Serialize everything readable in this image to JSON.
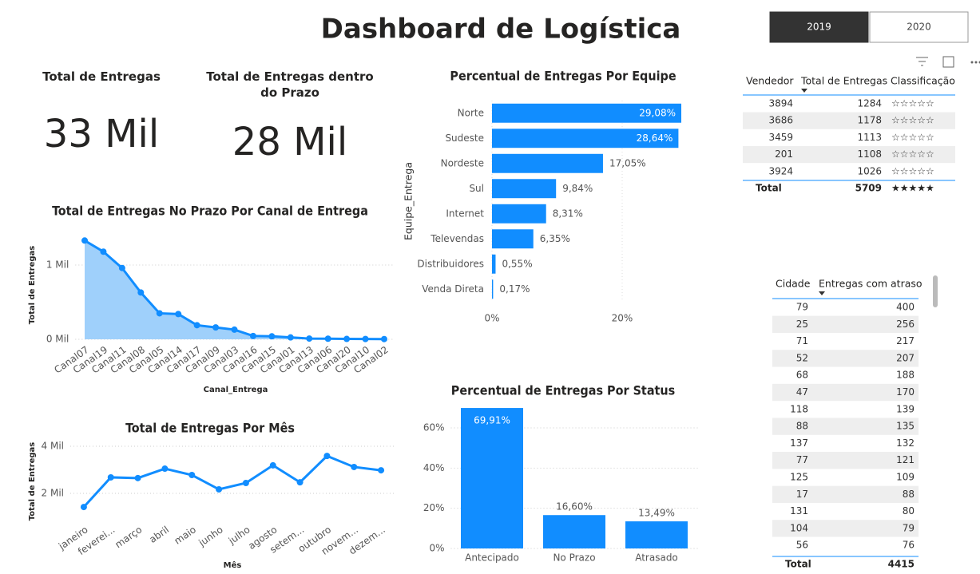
{
  "title": "Dashboard de Logística",
  "slicer": {
    "options": [
      "2019",
      "2020"
    ],
    "selected": 0
  },
  "cards": [
    {
      "title": "Total de Entregas",
      "value": "33 Mil"
    },
    {
      "title": "Total de Entregas dentro do Prazo",
      "value": "28 Mil"
    }
  ],
  "tables": [
    {
      "columns": [
        "Vendedor",
        "Total de Entregas",
        "Classificação"
      ],
      "rows": [
        [
          3894,
          1284,
          "☆☆☆☆☆"
        ],
        [
          3686,
          1178,
          "☆☆☆☆☆"
        ],
        [
          3459,
          1113,
          "☆☆☆☆☆"
        ],
        [
          201,
          1108,
          "☆☆☆☆☆"
        ],
        [
          3924,
          1026,
          "☆☆☆☆☆"
        ]
      ],
      "total": [
        "Total",
        5709,
        "★★★★★"
      ]
    },
    {
      "columns": [
        "Cidade",
        "Entregas com atraso"
      ],
      "rows": [
        [
          79,
          400
        ],
        [
          25,
          256
        ],
        [
          71,
          217
        ],
        [
          52,
          207
        ],
        [
          68,
          188
        ],
        [
          47,
          170
        ],
        [
          118,
          139
        ],
        [
          88,
          135
        ],
        [
          137,
          132
        ],
        [
          77,
          121
        ],
        [
          125,
          109
        ],
        [
          17,
          88
        ],
        [
          131,
          80
        ],
        [
          104,
          79
        ],
        [
          56,
          76
        ]
      ],
      "total": [
        "Total",
        4415
      ]
    }
  ],
  "chart_data": [
    {
      "type": "area",
      "title": "Total de Entregas No Prazo Por Canal de Entrega",
      "x_label": "Canal_Entrega",
      "y_label": "Total de Entregas",
      "categories": [
        "Canal07",
        "Canal19",
        "Canal11",
        "Canal08",
        "Canal05",
        "Canal14",
        "Canal17",
        "Canal09",
        "Canal03",
        "Canal16",
        "Canal15",
        "Canal01",
        "Canal13",
        "Canal06",
        "Canal20",
        "Canal10",
        "Canal02"
      ],
      "values": [
        1330,
        1180,
        960,
        630,
        350,
        340,
        190,
        160,
        130,
        45,
        40,
        25,
        10,
        8,
        5,
        4,
        3
      ],
      "color": "#118dff",
      "fill": "#9fd0fb",
      "ylim": [
        0,
        1400
      ],
      "yticks": [
        {
          "value": 0,
          "label": "0 Mil"
        },
        {
          "value": 1000,
          "label": "1 Mil"
        }
      ],
      "grid": true
    },
    {
      "type": "line",
      "title": "Total de Entregas Por Mês",
      "x_label": "Mês",
      "y_label": "Total de Entregas",
      "categories": [
        "janeiro",
        "feverei...",
        "março",
        "abril",
        "maio",
        "junho",
        "julho",
        "agosto",
        "setem...",
        "outubro",
        "novem...",
        "dezem..."
      ],
      "values": [
        1420,
        2680,
        2650,
        3050,
        2780,
        2170,
        2440,
        3190,
        2470,
        3590,
        3120,
        2980
      ],
      "color": "#118dff",
      "ylim": [
        900,
        4500
      ],
      "yticks": [
        {
          "value": 2000,
          "label": "2 Mil"
        },
        {
          "value": 4000,
          "label": "4 Mil"
        }
      ],
      "grid": true
    },
    {
      "type": "hbar",
      "title": "Percentual de Entregas Por Equipe",
      "y_label": "Equipe_Entrega",
      "categories": [
        "Norte",
        "Sudeste",
        "Nordeste",
        "Sul",
        "Internet",
        "Televendas",
        "Distribuidores",
        "Venda Direta"
      ],
      "values": [
        29.08,
        28.64,
        17.05,
        9.84,
        8.31,
        6.35,
        0.55,
        0.17
      ],
      "value_labels": [
        "29,08%",
        "28,64%",
        "17,05%",
        "9,84%",
        "8,31%",
        "6,35%",
        "0,55%",
        "0,17%"
      ],
      "color": "#118dff",
      "xlim": [
        0,
        30
      ],
      "xticks": [
        {
          "value": 0,
          "label": "0%"
        },
        {
          "value": 20,
          "label": "20%"
        }
      ],
      "grid": true
    },
    {
      "type": "bar",
      "title": "Percentual de Entregas Por Status",
      "categories": [
        "Antecipado",
        "No Prazo",
        "Atrasado"
      ],
      "values": [
        69.91,
        16.6,
        13.49
      ],
      "value_labels": [
        "69,91%",
        "16,60%",
        "13,49%"
      ],
      "color": "#118dff",
      "ylim": [
        0,
        72
      ],
      "yticks": [
        {
          "value": 0,
          "label": "0%"
        },
        {
          "value": 20,
          "label": "20%"
        },
        {
          "value": 40,
          "label": "40%"
        },
        {
          "value": 60,
          "label": "60%"
        }
      ],
      "grid": true
    }
  ]
}
